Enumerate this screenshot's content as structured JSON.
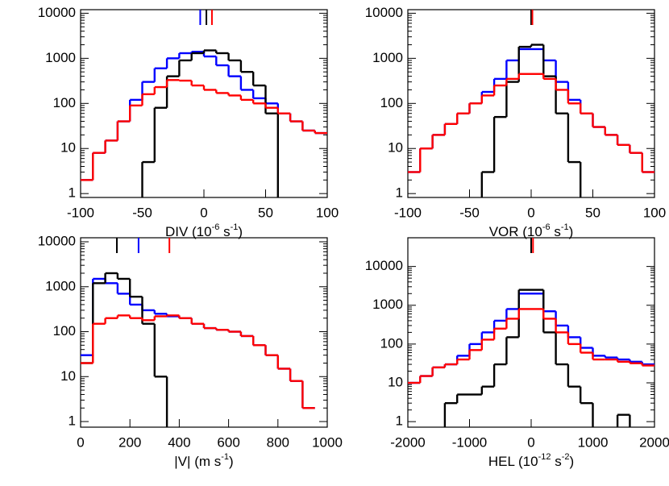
{
  "chart_data": [
    {
      "type": "step",
      "xlabel": [
        "DIV (10",
        "-6",
        " s",
        "-1",
        ")"
      ],
      "log_y": true,
      "xlim": [
        -100,
        100
      ],
      "xticks": [
        -100,
        -50,
        0,
        50,
        100
      ],
      "ylim": [
        0.82,
        12000
      ],
      "yticks": [
        1,
        10,
        100,
        1000,
        10000
      ],
      "x": [
        -95,
        -85,
        -75,
        -65,
        -55,
        -45,
        -35,
        -25,
        -15,
        -5,
        5,
        15,
        25,
        35,
        45,
        55,
        65,
        75,
        85,
        95
      ],
      "series": [
        {
          "color": "#0000ff",
          "mean": -3,
          "values": [
            2,
            8,
            15,
            40,
            120,
            300,
            600,
            1000,
            1300,
            1400,
            1100,
            700,
            400,
            200,
            130,
            100,
            60,
            40,
            25,
            22
          ]
        },
        {
          "color": "#000000",
          "mean": 2,
          "values": [
            null,
            null,
            null,
            null,
            null,
            5,
            80,
            400,
            900,
            1300,
            1500,
            1300,
            900,
            500,
            250,
            60,
            null,
            null,
            null,
            null
          ]
        },
        {
          "color": "#ff0000",
          "mean": 6.5,
          "values": [
            2,
            8,
            15,
            40,
            90,
            160,
            230,
            330,
            320,
            250,
            200,
            170,
            150,
            120,
            100,
            80,
            60,
            40,
            25,
            22
          ]
        }
      ]
    },
    {
      "type": "step",
      "xlabel": [
        "VOR (10",
        "-6",
        " s",
        "-1",
        ")"
      ],
      "log_y": true,
      "xlim": [
        -100,
        100
      ],
      "xticks": [
        -100,
        -50,
        0,
        50,
        100
      ],
      "ylim": [
        0.82,
        12000
      ],
      "yticks": [
        1,
        10,
        100,
        1000,
        10000
      ],
      "x": [
        -95,
        -85,
        -75,
        -65,
        -55,
        -45,
        -35,
        -25,
        -15,
        -5,
        5,
        15,
        25,
        35,
        45,
        55,
        65,
        75,
        85,
        95
      ],
      "series": [
        {
          "color": "#0000ff",
          "mean": 0,
          "values": [
            3,
            10,
            20,
            35,
            60,
            100,
            180,
            350,
            900,
            1600,
            1600,
            900,
            300,
            120,
            60,
            30,
            20,
            12,
            8,
            3
          ]
        },
        {
          "color": "#000000",
          "mean": 0,
          "values": [
            null,
            null,
            null,
            null,
            null,
            null,
            3,
            50,
            300,
            1800,
            2000,
            400,
            60,
            5,
            null,
            null,
            null,
            null,
            null,
            null
          ]
        },
        {
          "color": "#ff0000",
          "mean": 1,
          "values": [
            3,
            10,
            20,
            35,
            60,
            100,
            150,
            250,
            350,
            450,
            450,
            350,
            200,
            100,
            60,
            30,
            20,
            12,
            8,
            3
          ]
        }
      ]
    },
    {
      "type": "step",
      "xlabel": [
        "|V| (m s",
        "-1",
        ")"
      ],
      "log_y": true,
      "xlim": [
        0,
        1000
      ],
      "xticks": [
        0,
        200,
        400,
        600,
        800,
        1000
      ],
      "ylim": [
        0.75,
        12300
      ],
      "yticks": [
        1,
        10,
        100,
        1000,
        10000
      ],
      "x": [
        25,
        75,
        125,
        175,
        225,
        275,
        325,
        375,
        425,
        475,
        525,
        575,
        625,
        675,
        725,
        775,
        825,
        875,
        925
      ],
      "series": [
        {
          "color": "#0000ff",
          "mean": 235,
          "values": [
            30,
            1500,
            1200,
            700,
            400,
            300,
            250,
            220,
            200,
            150,
            120,
            110,
            100,
            80,
            50,
            30,
            15,
            8,
            2
          ]
        },
        {
          "color": "#000000",
          "mean": 147,
          "values": [
            20,
            1200,
            2000,
            1500,
            600,
            150,
            10,
            null,
            null,
            null,
            null,
            null,
            null,
            null,
            null,
            null,
            null,
            null,
            null
          ]
        },
        {
          "color": "#ff0000",
          "mean": 360,
          "values": [
            20,
            150,
            200,
            230,
            200,
            180,
            220,
            230,
            200,
            150,
            120,
            110,
            100,
            80,
            50,
            30,
            15,
            8,
            2
          ]
        }
      ]
    },
    {
      "type": "step",
      "xlabel": [
        "HEL (10",
        "-12",
        " s",
        "-2",
        ")"
      ],
      "log_y": true,
      "xlim": [
        -2000,
        2000
      ],
      "xticks": [
        -2000,
        -1000,
        0,
        1000,
        2000
      ],
      "ylim": [
        0.72,
        55000
      ],
      "yticks": [
        1,
        10,
        100,
        1000,
        10000
      ],
      "x": [
        -1900,
        -1700,
        -1500,
        -1300,
        -1100,
        -900,
        -700,
        -500,
        -300,
        -100,
        100,
        300,
        500,
        700,
        900,
        1100,
        1300,
        1500,
        1700,
        1900
      ],
      "series": [
        {
          "color": "#0000ff",
          "mean": 0,
          "values": [
            10,
            15,
            25,
            30,
            50,
            100,
            200,
            400,
            800,
            2000,
            2000,
            700,
            300,
            150,
            80,
            50,
            45,
            40,
            35,
            30
          ]
        },
        {
          "color": "#000000",
          "mean": 0,
          "values": [
            null,
            null,
            null,
            3,
            5,
            5,
            8,
            30,
            150,
            2500,
            2500,
            200,
            30,
            8,
            3,
            null,
            null,
            1.5,
            null,
            null
          ]
        },
        {
          "color": "#ff0000",
          "mean": 30,
          "values": [
            10,
            15,
            25,
            30,
            40,
            70,
            130,
            250,
            450,
            800,
            800,
            450,
            200,
            100,
            60,
            40,
            40,
            35,
            32,
            28
          ]
        }
      ]
    }
  ]
}
